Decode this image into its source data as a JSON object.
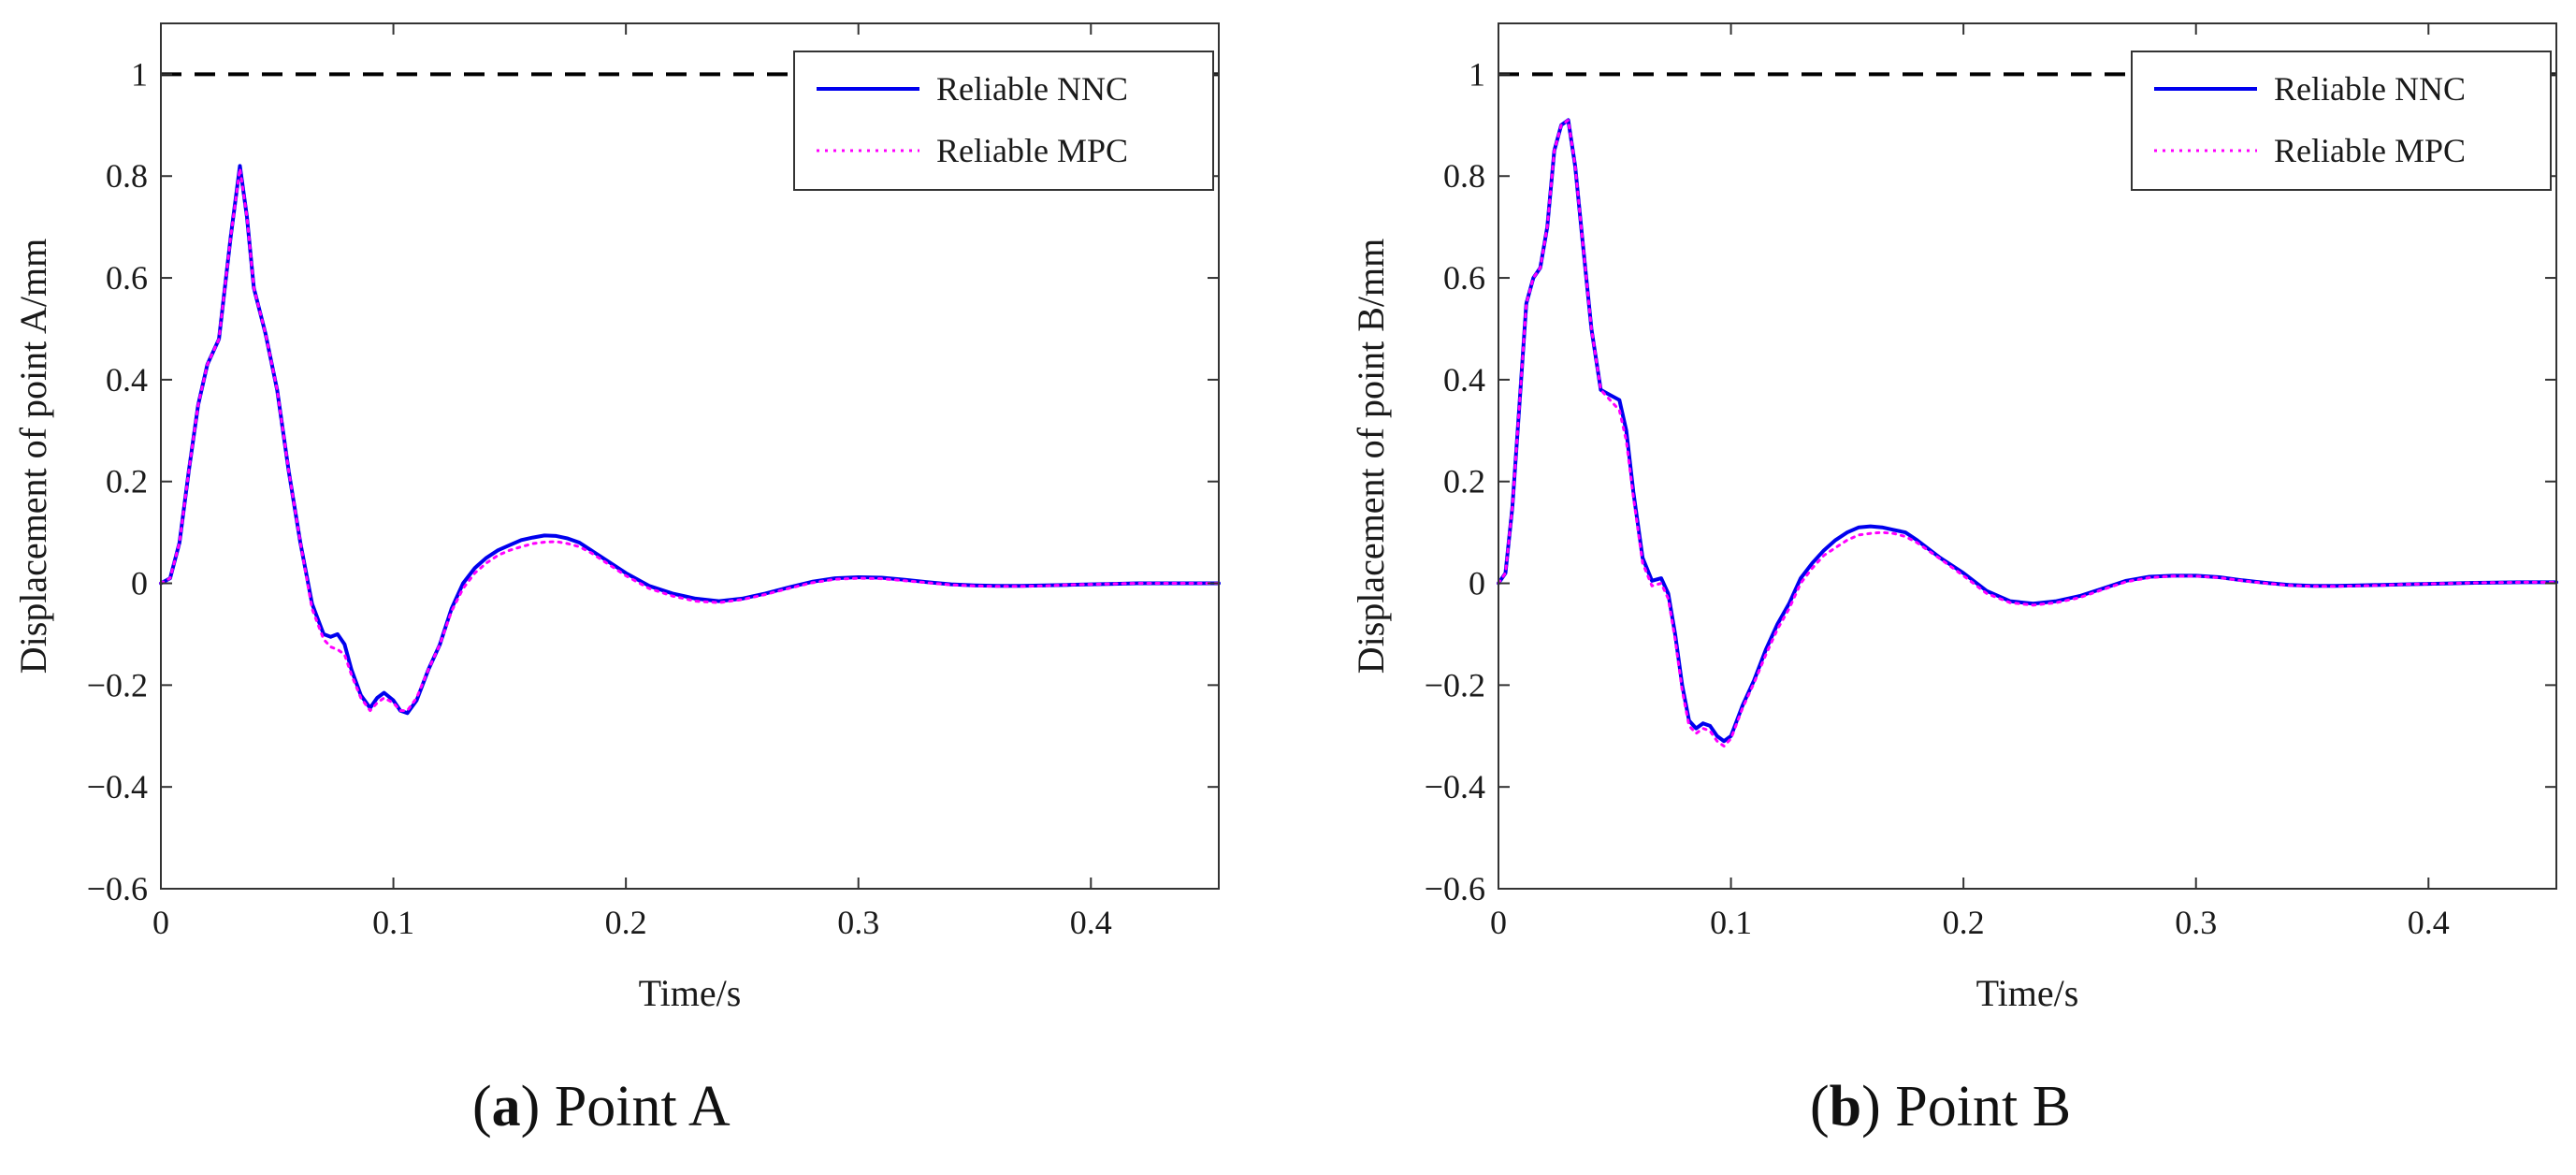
{
  "chart_data": [
    {
      "type": "line",
      "caption_letter": "a",
      "caption_text": "Point A",
      "xlabel": "Time/s",
      "ylabel": "Displacement of point A/mm",
      "xlim": [
        0,
        0.455
      ],
      "ylim": [
        -0.6,
        1.1
      ],
      "xticks": [
        0,
        0.1,
        0.2,
        0.3,
        0.4
      ],
      "xtick_labels": [
        "0",
        "0.1",
        "0.2",
        "0.3",
        "0.4"
      ],
      "yticks": [
        -0.6,
        -0.4,
        -0.2,
        0,
        0.2,
        0.4,
        0.6,
        0.8,
        1
      ],
      "ytick_labels": [
        "−0.6",
        "−0.4",
        "−0.2",
        "0",
        "0.2",
        "0.4",
        "0.6",
        "0.8",
        "1"
      ],
      "grid": false,
      "legend_position": "top-right",
      "reference_line": {
        "y": 1,
        "style": "dashed",
        "color": "#000000"
      },
      "series": [
        {
          "name": "Reliable NNC",
          "color": "#0000ee",
          "style": "solid",
          "x": [
            0,
            0.004,
            0.008,
            0.012,
            0.016,
            0.02,
            0.025,
            0.03,
            0.034,
            0.037,
            0.04,
            0.045,
            0.05,
            0.055,
            0.06,
            0.065,
            0.07,
            0.073,
            0.076,
            0.079,
            0.082,
            0.086,
            0.09,
            0.093,
            0.096,
            0.1,
            0.103,
            0.106,
            0.11,
            0.115,
            0.12,
            0.125,
            0.13,
            0.135,
            0.14,
            0.145,
            0.15,
            0.155,
            0.16,
            0.165,
            0.17,
            0.175,
            0.18,
            0.185,
            0.19,
            0.2,
            0.21,
            0.22,
            0.23,
            0.24,
            0.25,
            0.26,
            0.27,
            0.28,
            0.29,
            0.3,
            0.31,
            0.32,
            0.33,
            0.34,
            0.35,
            0.36,
            0.37,
            0.38,
            0.39,
            0.4,
            0.41,
            0.42,
            0.43,
            0.44,
            0.455
          ],
          "values": [
            0,
            0.01,
            0.08,
            0.22,
            0.35,
            0.43,
            0.48,
            0.68,
            0.82,
            0.72,
            0.58,
            0.49,
            0.38,
            0.22,
            0.08,
            -0.04,
            -0.1,
            -0.105,
            -0.1,
            -0.12,
            -0.17,
            -0.22,
            -0.245,
            -0.225,
            -0.215,
            -0.23,
            -0.25,
            -0.255,
            -0.23,
            -0.17,
            -0.12,
            -0.05,
            0,
            0.03,
            0.05,
            0.065,
            0.075,
            0.085,
            0.09,
            0.094,
            0.093,
            0.088,
            0.08,
            0.065,
            0.05,
            0.02,
            -0.005,
            -0.02,
            -0.03,
            -0.035,
            -0.03,
            -0.02,
            -0.008,
            0.003,
            0.01,
            0.012,
            0.011,
            0.007,
            0.002,
            -0.002,
            -0.004,
            -0.005,
            -0.005,
            -0.004,
            -0.003,
            -0.002,
            -0.001,
            0,
            0,
            0,
            0
          ]
        },
        {
          "name": "Reliable MPC",
          "color": "#ff00ff",
          "style": "dotted",
          "x": [
            0,
            0.004,
            0.008,
            0.012,
            0.016,
            0.02,
            0.025,
            0.03,
            0.034,
            0.037,
            0.04,
            0.045,
            0.05,
            0.055,
            0.06,
            0.065,
            0.07,
            0.073,
            0.076,
            0.079,
            0.082,
            0.086,
            0.09,
            0.093,
            0.096,
            0.1,
            0.103,
            0.106,
            0.11,
            0.115,
            0.12,
            0.125,
            0.13,
            0.135,
            0.14,
            0.145,
            0.15,
            0.155,
            0.16,
            0.165,
            0.17,
            0.175,
            0.18,
            0.185,
            0.19,
            0.2,
            0.21,
            0.22,
            0.23,
            0.24,
            0.25,
            0.26,
            0.27,
            0.28,
            0.29,
            0.3,
            0.31,
            0.32,
            0.33,
            0.34,
            0.35,
            0.36,
            0.37,
            0.38,
            0.39,
            0.4,
            0.41,
            0.42,
            0.43,
            0.44,
            0.455
          ],
          "values": [
            0,
            0.01,
            0.08,
            0.22,
            0.35,
            0.43,
            0.48,
            0.68,
            0.815,
            0.72,
            0.58,
            0.49,
            0.38,
            0.22,
            0.08,
            -0.05,
            -0.11,
            -0.125,
            -0.13,
            -0.14,
            -0.18,
            -0.225,
            -0.25,
            -0.235,
            -0.225,
            -0.235,
            -0.25,
            -0.25,
            -0.225,
            -0.17,
            -0.12,
            -0.055,
            -0.01,
            0.02,
            0.04,
            0.055,
            0.065,
            0.072,
            0.078,
            0.081,
            0.082,
            0.078,
            0.072,
            0.06,
            0.045,
            0.015,
            -0.01,
            -0.025,
            -0.035,
            -0.038,
            -0.032,
            -0.022,
            -0.01,
            0.001,
            0.008,
            0.01,
            0.009,
            0.005,
            0.001,
            -0.003,
            -0.005,
            -0.006,
            -0.006,
            -0.005,
            -0.003,
            -0.002,
            -0.001,
            0,
            0,
            0,
            0
          ]
        }
      ]
    },
    {
      "type": "line",
      "caption_letter": "b",
      "caption_text": "Point B",
      "xlabel": "Time/s",
      "ylabel": "Displacement of point B/mm",
      "xlim": [
        0,
        0.455
      ],
      "ylim": [
        -0.6,
        1.1
      ],
      "xticks": [
        0,
        0.1,
        0.2,
        0.3,
        0.4
      ],
      "xtick_labels": [
        "0",
        "0.1",
        "0.2",
        "0.3",
        "0.4"
      ],
      "yticks": [
        -0.6,
        -0.4,
        -0.2,
        0,
        0.2,
        0.4,
        0.6,
        0.8,
        1
      ],
      "ytick_labels": [
        "−0.6",
        "−0.4",
        "−0.2",
        "0",
        "0.2",
        "0.4",
        "0.6",
        "0.8",
        "1"
      ],
      "grid": false,
      "legend_position": "top-right",
      "reference_line": {
        "y": 1,
        "style": "dashed",
        "color": "#000000"
      },
      "series": [
        {
          "name": "Reliable NNC",
          "color": "#0000ee",
          "style": "solid",
          "x": [
            0,
            0.003,
            0.006,
            0.009,
            0.012,
            0.015,
            0.018,
            0.021,
            0.024,
            0.027,
            0.03,
            0.033,
            0.036,
            0.04,
            0.044,
            0.048,
            0.052,
            0.055,
            0.058,
            0.062,
            0.066,
            0.07,
            0.073,
            0.076,
            0.079,
            0.082,
            0.085,
            0.088,
            0.091,
            0.094,
            0.097,
            0.1,
            0.105,
            0.11,
            0.115,
            0.12,
            0.125,
            0.13,
            0.135,
            0.14,
            0.145,
            0.15,
            0.155,
            0.16,
            0.165,
            0.17,
            0.175,
            0.18,
            0.19,
            0.2,
            0.21,
            0.22,
            0.23,
            0.24,
            0.25,
            0.26,
            0.27,
            0.28,
            0.29,
            0.3,
            0.31,
            0.32,
            0.33,
            0.34,
            0.35,
            0.36,
            0.37,
            0.38,
            0.39,
            0.4,
            0.42,
            0.44,
            0.455
          ],
          "values": [
            0,
            0.02,
            0.15,
            0.35,
            0.55,
            0.6,
            0.62,
            0.7,
            0.85,
            0.9,
            0.91,
            0.82,
            0.68,
            0.5,
            0.38,
            0.37,
            0.36,
            0.3,
            0.18,
            0.05,
            0.005,
            0.01,
            -0.02,
            -0.1,
            -0.2,
            -0.27,
            -0.285,
            -0.275,
            -0.28,
            -0.3,
            -0.31,
            -0.3,
            -0.24,
            -0.19,
            -0.13,
            -0.08,
            -0.04,
            0.01,
            0.04,
            0.065,
            0.085,
            0.1,
            0.11,
            0.112,
            0.11,
            0.105,
            0.1,
            0.085,
            0.05,
            0.02,
            -0.015,
            -0.035,
            -0.04,
            -0.035,
            -0.025,
            -0.01,
            0.005,
            0.013,
            0.015,
            0.015,
            0.012,
            0.006,
            0.001,
            -0.003,
            -0.005,
            -0.005,
            -0.004,
            -0.003,
            -0.002,
            -0.001,
            0.001,
            0.002,
            0.002
          ]
        },
        {
          "name": "Reliable MPC",
          "color": "#ff00ff",
          "style": "dotted",
          "x": [
            0,
            0.003,
            0.006,
            0.009,
            0.012,
            0.015,
            0.018,
            0.021,
            0.024,
            0.027,
            0.03,
            0.033,
            0.036,
            0.04,
            0.044,
            0.048,
            0.052,
            0.055,
            0.058,
            0.062,
            0.066,
            0.07,
            0.073,
            0.076,
            0.079,
            0.082,
            0.085,
            0.088,
            0.091,
            0.094,
            0.097,
            0.1,
            0.105,
            0.11,
            0.115,
            0.12,
            0.125,
            0.13,
            0.135,
            0.14,
            0.145,
            0.15,
            0.155,
            0.16,
            0.165,
            0.17,
            0.175,
            0.18,
            0.19,
            0.2,
            0.21,
            0.22,
            0.23,
            0.24,
            0.25,
            0.26,
            0.27,
            0.28,
            0.29,
            0.3,
            0.31,
            0.32,
            0.33,
            0.34,
            0.35,
            0.36,
            0.37,
            0.38,
            0.39,
            0.4,
            0.42,
            0.44,
            0.455
          ],
          "values": [
            0,
            0.02,
            0.15,
            0.35,
            0.55,
            0.6,
            0.62,
            0.7,
            0.85,
            0.9,
            0.91,
            0.82,
            0.68,
            0.5,
            0.38,
            0.36,
            0.34,
            0.28,
            0.17,
            0.04,
            -0.005,
            0,
            -0.03,
            -0.11,
            -0.21,
            -0.28,
            -0.295,
            -0.285,
            -0.29,
            -0.31,
            -0.32,
            -0.305,
            -0.245,
            -0.195,
            -0.14,
            -0.09,
            -0.05,
            0,
            0.03,
            0.055,
            0.07,
            0.085,
            0.095,
            0.098,
            0.1,
            0.098,
            0.092,
            0.08,
            0.048,
            0.015,
            -0.02,
            -0.038,
            -0.043,
            -0.038,
            -0.028,
            -0.012,
            0.003,
            0.011,
            0.014,
            0.014,
            0.011,
            0.005,
            0,
            -0.004,
            -0.006,
            -0.006,
            -0.005,
            -0.004,
            -0.002,
            -0.001,
            0.001,
            0.002,
            0.002
          ]
        }
      ]
    }
  ]
}
